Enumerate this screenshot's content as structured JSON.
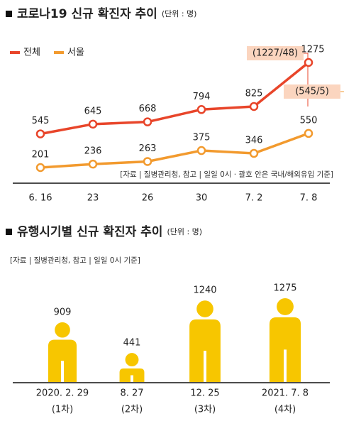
{
  "chart_data": [
    {
      "type": "line",
      "title": "코로나19 신규 확진자 추이",
      "subtitle": "(단위 : 명)",
      "categories": [
        "6. 16",
        "23",
        "26",
        "30",
        "7. 2",
        "7. 8"
      ],
      "series": [
        {
          "name": "전체",
          "color": "#e8452a",
          "values": [
            545,
            645,
            668,
            794,
            825,
            1275
          ]
        },
        {
          "name": "서울",
          "color": "#f29a2e",
          "values": [
            201,
            236,
            263,
            375,
            346,
            550
          ]
        }
      ],
      "annotations": [
        "(1227/48)",
        "(545/5)"
      ],
      "note": "[자료 | 질병관리청, 참고 | 일일 0시 · 괄호 안은 국내/해외유입 기준]"
    },
    {
      "type": "pictograph",
      "title": "유행시기별 신규 확진자 추이",
      "subtitle": "(단위 : 명)",
      "note": "[자료 | 질병관리청, 참고 | 일일 0시 기준]",
      "categories": [
        "2020. 2. 29",
        "8. 27",
        "12. 25",
        "2021. 7. 8"
      ],
      "waves": [
        "(1차)",
        "(2차)",
        "(3차)",
        "(4차)"
      ],
      "values": [
        909,
        441,
        1240,
        1275
      ],
      "color": "#f7c600"
    }
  ]
}
